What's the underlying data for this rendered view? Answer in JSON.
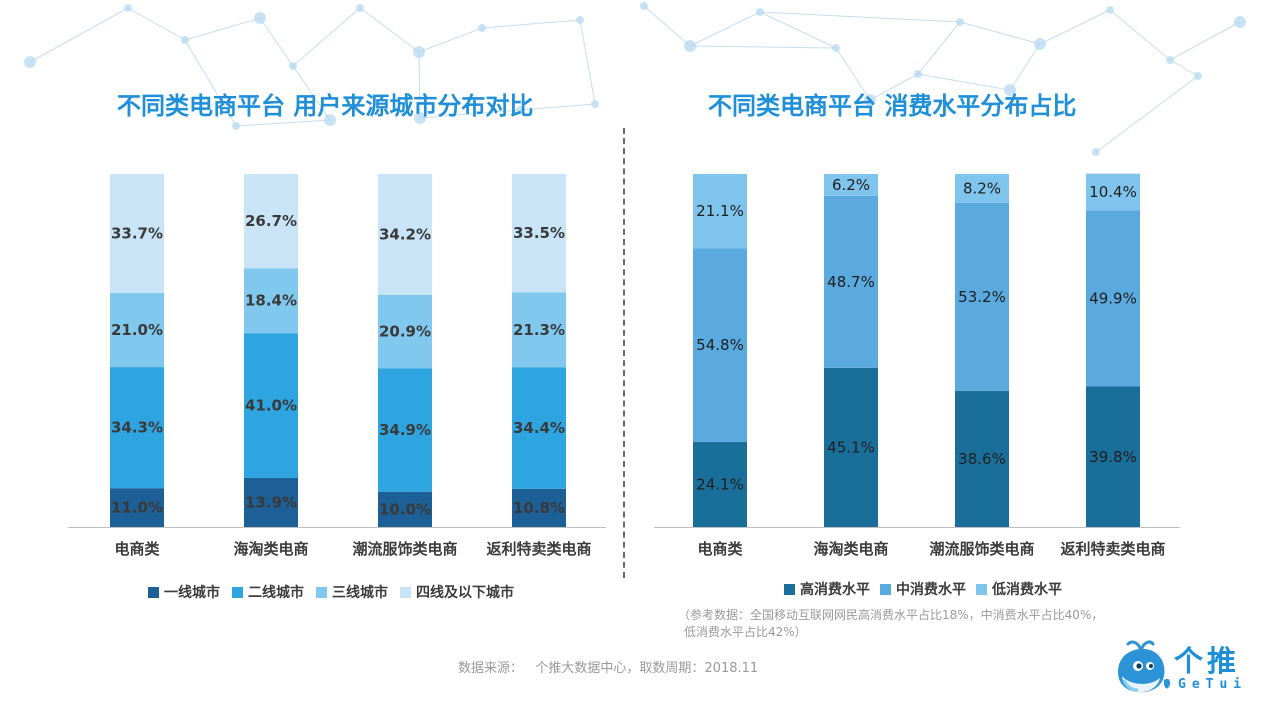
{
  "left_chart_title": "不同类电商平台 用户来源城市分布对比",
  "right_chart_title": "不同类电商平台 消费水平分布占比",
  "reference_note_line1": "（参考数据：全国移动互联网网民高消费水平占比18%，中消费水平占比40%，",
  "reference_note_line2": "低消费水平占比42%）",
  "source_note": "数据来源：   个推大数据中心，取数周期：2018.11",
  "logo": {
    "cn": "个推",
    "en": "GeTui",
    "mascot_icon": "whale-mascot-icon"
  },
  "colors": {
    "title": "#1e8fd8",
    "tier1": "#1d5f97",
    "tier2": "#2ea4e1",
    "tier3": "#80c8ee",
    "tier4": "#c9e4f6",
    "high": "#1a6e9a",
    "mid": "#5aa9df",
    "low": "#7fc4ec"
  },
  "chart_data": [
    {
      "type": "bar",
      "stacked": true,
      "title": "不同类电商平台 用户来源城市分布对比",
      "categories": [
        "电商类",
        "海淘类电商",
        "潮流服饰类电商",
        "返利特卖类电商"
      ],
      "unit": "%",
      "ylim": [
        0,
        100
      ],
      "grid": false,
      "legend_position": "bottom",
      "series": [
        {
          "name": "一线城市",
          "values": [
            11.0,
            13.9,
            10.0,
            10.8
          ],
          "labels": [
            "11.0%",
            "13.9%",
            "10.0%",
            "10.8%"
          ]
        },
        {
          "name": "二线城市",
          "values": [
            34.3,
            41.0,
            34.9,
            34.4
          ],
          "labels": [
            "34.3%",
            "41.0%",
            "34.9%",
            "34.4%"
          ]
        },
        {
          "name": "三线城市",
          "values": [
            21.0,
            18.4,
            20.9,
            21.3
          ],
          "labels": [
            "21.0%",
            "18.4%",
            "20.9%",
            "21.3%"
          ]
        },
        {
          "name": "四线及以下城市",
          "values": [
            33.7,
            26.7,
            34.2,
            33.5
          ],
          "labels": [
            "33.7%",
            "26.7%",
            "34.2%",
            "33.5%"
          ]
        }
      ]
    },
    {
      "type": "bar",
      "stacked": true,
      "title": "不同类电商平台 消费水平分布占比",
      "categories": [
        "电商类",
        "海淘类电商",
        "潮流服饰类电商",
        "返利特卖类电商"
      ],
      "unit": "%",
      "ylim": [
        0,
        100
      ],
      "grid": false,
      "legend_position": "bottom",
      "series": [
        {
          "name": "高消费水平",
          "values": [
            24.1,
            45.1,
            38.6,
            39.8
          ],
          "labels": [
            "24.1%",
            "45.1%",
            "38.6%",
            "39.8%"
          ]
        },
        {
          "name": "中消费水平",
          "values": [
            54.8,
            48.7,
            53.2,
            49.9
          ],
          "labels": [
            "54.8%",
            "48.7%",
            "53.2%",
            "49.9%"
          ]
        },
        {
          "name": "低消费水平",
          "values": [
            21.1,
            6.2,
            8.2,
            10.4
          ],
          "labels": [
            "21.1%",
            "6.2%",
            "8.2%",
            "10.4%"
          ]
        }
      ]
    }
  ]
}
